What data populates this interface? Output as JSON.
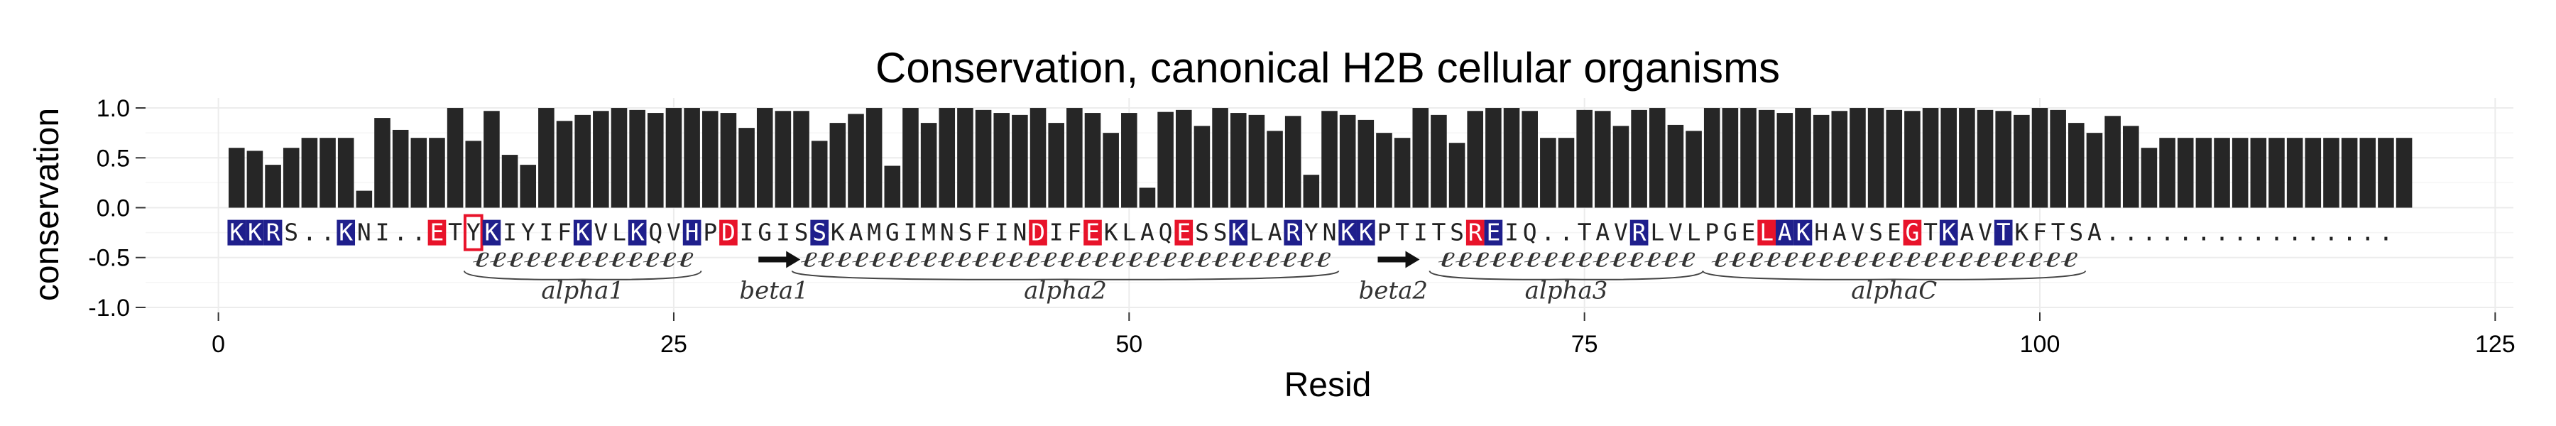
{
  "chart_data": {
    "type": "bar",
    "title": "Conservation, canonical H2B cellular organisms",
    "xlabel": "Resid",
    "ylabel": "conservation",
    "xlim": [
      -4,
      126
    ],
    "ylim": [
      -1.05,
      1.1
    ],
    "xticks": [
      0,
      25,
      50,
      75,
      100,
      125
    ],
    "yticks": [
      -1.0,
      -0.5,
      0.0,
      0.5,
      1.0
    ],
    "ytick_labels": [
      "-1.0",
      "-0.5",
      "0.0",
      "0.5",
      "1.0"
    ],
    "grid": true,
    "bar_color": "#262626",
    "x": [
      1,
      2,
      3,
      4,
      5,
      6,
      7,
      8,
      9,
      10,
      11,
      12,
      13,
      14,
      15,
      16,
      17,
      18,
      19,
      20,
      21,
      22,
      23,
      24,
      25,
      26,
      27,
      28,
      29,
      30,
      31,
      32,
      33,
      34,
      35,
      36,
      37,
      38,
      39,
      40,
      41,
      42,
      43,
      44,
      45,
      46,
      47,
      48,
      49,
      50,
      51,
      52,
      53,
      54,
      55,
      56,
      57,
      58,
      59,
      60,
      61,
      62,
      63,
      64,
      65,
      66,
      67,
      68,
      69,
      70,
      71,
      72,
      73,
      74,
      75,
      76,
      77,
      78,
      79,
      80,
      81,
      82,
      83,
      84,
      85,
      86,
      87,
      88,
      89,
      90,
      91,
      92,
      93,
      94,
      95,
      96,
      97,
      98,
      99,
      100,
      101,
      102,
      103,
      104,
      105,
      106,
      107,
      108,
      109,
      110,
      111,
      112,
      113,
      114,
      115,
      116,
      117,
      118,
      119,
      120
    ],
    "values": [
      0.6,
      0.57,
      0.43,
      0.6,
      0.7,
      0.7,
      0.7,
      0.17,
      0.9,
      0.78,
      0.7,
      0.7,
      1.0,
      0.67,
      0.97,
      0.53,
      0.43,
      1.0,
      0.87,
      0.93,
      0.97,
      1.0,
      0.98,
      0.95,
      1.0,
      1.0,
      0.97,
      0.95,
      0.8,
      1.0,
      0.97,
      0.97,
      0.67,
      0.85,
      0.94,
      1.0,
      0.42,
      1.0,
      0.85,
      1.0,
      1.0,
      0.98,
      0.95,
      0.93,
      1.0,
      0.85,
      1.0,
      0.95,
      0.75,
      0.95,
      0.2,
      0.96,
      0.98,
      0.82,
      1.0,
      0.95,
      0.93,
      0.77,
      0.92,
      0.33,
      0.97,
      0.93,
      0.88,
      0.75,
      0.7,
      1.0,
      0.93,
      0.65,
      0.97,
      1.0,
      1.0,
      0.97,
      0.7,
      0.7,
      0.98,
      0.97,
      0.82,
      0.98,
      1.0,
      0.83,
      0.77,
      1.0,
      1.0,
      1.0,
      0.98,
      0.95,
      1.0,
      0.93,
      0.97,
      1.0,
      1.0,
      0.98,
      0.97,
      1.0,
      1.0,
      1.0,
      0.98,
      0.97,
      0.93,
      1.0,
      0.98,
      0.85,
      0.75,
      0.92,
      0.82,
      0.6,
      0.7,
      0.7,
      0.7,
      0.7,
      0.7,
      0.7,
      0.7,
      0.7,
      0.7,
      0.7,
      0.7,
      0.7,
      0.7,
      0.7
    ]
  },
  "sequence": {
    "text": "KKRS..KNI..ETYKIYIFKVLKQVHPDIGISSKAMGIMNSFINDIFEKLAQESSKLARYNKKPTITSREIQ..TAVRLVLPGELAKHAVSEGTKAVTKFTSA................",
    "blue_positions": [
      1,
      2,
      3,
      7,
      15,
      20,
      23,
      26,
      33,
      56,
      59,
      62,
      63,
      70,
      78,
      86,
      87,
      95,
      98
    ],
    "red_positions": [
      12,
      28,
      45,
      48,
      53,
      69,
      85,
      93
    ],
    "boxed_positions": [
      14
    ],
    "blue_color": "#1f1f8c",
    "red_color": "#e8132a",
    "text_color": "#222222"
  },
  "secondary_structure": [
    {
      "type": "helix",
      "start": 14,
      "end": 27,
      "label": "alpha1"
    },
    {
      "type": "strand",
      "start": 30,
      "end": 32,
      "label": "beta1"
    },
    {
      "type": "helix",
      "start": 32,
      "end": 62,
      "label": "alpha2"
    },
    {
      "type": "strand",
      "start": 64,
      "end": 66,
      "label": "beta2"
    },
    {
      "type": "helix",
      "start": 67,
      "end": 82,
      "label": "alpha3"
    },
    {
      "type": "helix",
      "start": 82,
      "end": 103,
      "label": "alphaC"
    }
  ]
}
